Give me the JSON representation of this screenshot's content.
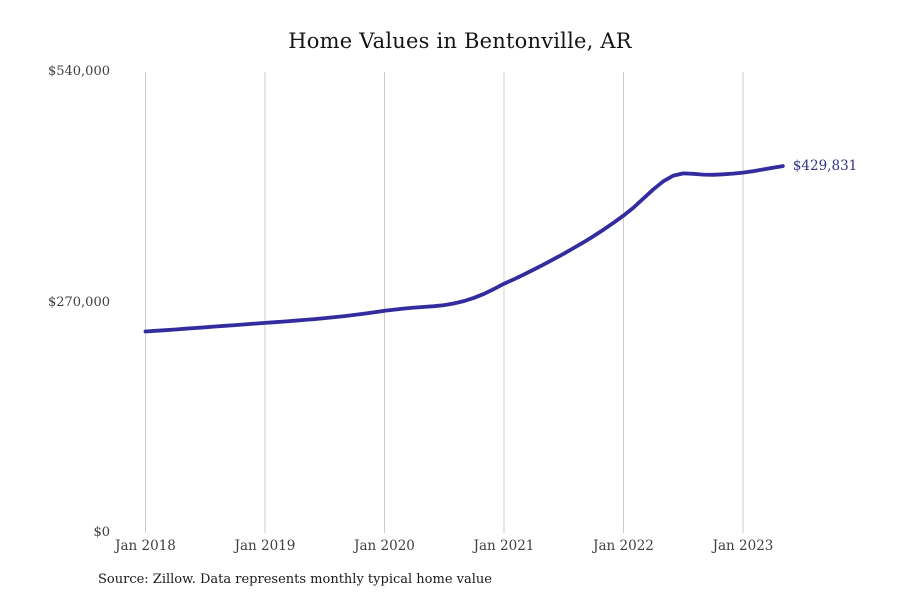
{
  "title": "Home Values in Bentonville, AR",
  "source_note": "Source: Zillow. Data represents monthly typical home value",
  "end_label": "$429,831",
  "colors": {
    "line": "#322c9e",
    "end_label": "#333380",
    "grid": "#cccccc",
    "tick_text": "#3f3f3f",
    "title_text": "#151515",
    "background": "#ffffff"
  },
  "chart_data": {
    "type": "line",
    "title": "Home Values in Bentonville, AR",
    "xlabel": "",
    "ylabel": "",
    "ylim": [
      0,
      540000
    ],
    "grid": "vertical-only",
    "legend": "none",
    "y_ticks": [
      {
        "label": "$540,000",
        "value": 540000
      },
      {
        "label": "$270,000",
        "value": 270000
      },
      {
        "label": "$0",
        "value": 0
      }
    ],
    "x_ticks": [
      {
        "label": "Jan 2018",
        "month_index": 0
      },
      {
        "label": "Jan 2019",
        "month_index": 12
      },
      {
        "label": "Jan 2020",
        "month_index": 24
      },
      {
        "label": "Jan 2021",
        "month_index": 36
      },
      {
        "label": "Jan 2022",
        "month_index": 48
      },
      {
        "label": "Jan 2023",
        "month_index": 60
      }
    ],
    "series": [
      {
        "name": "Monthly typical home value",
        "start_month": "2018-01",
        "end_month": "2023-05",
        "last_value": 429831,
        "values": [
          236000,
          236800,
          237600,
          238400,
          239300,
          240100,
          241000,
          241900,
          242700,
          243500,
          244400,
          245300,
          246100,
          246900,
          247800,
          248700,
          249600,
          250600,
          251700,
          252900,
          254100,
          255500,
          257000,
          258600,
          260300,
          261700,
          263000,
          264000,
          264800,
          265700,
          267000,
          269000,
          271800,
          275500,
          280200,
          285800,
          292000,
          297200,
          302800,
          308600,
          314600,
          320800,
          327200,
          333800,
          340600,
          347800,
          355400,
          363400,
          371800,
          381200,
          391800,
          402600,
          412000,
          418600,
          421200,
          420800,
          419800,
          419600,
          420200,
          421000,
          422200,
          423800,
          425800,
          427800,
          429831
        ]
      }
    ]
  }
}
